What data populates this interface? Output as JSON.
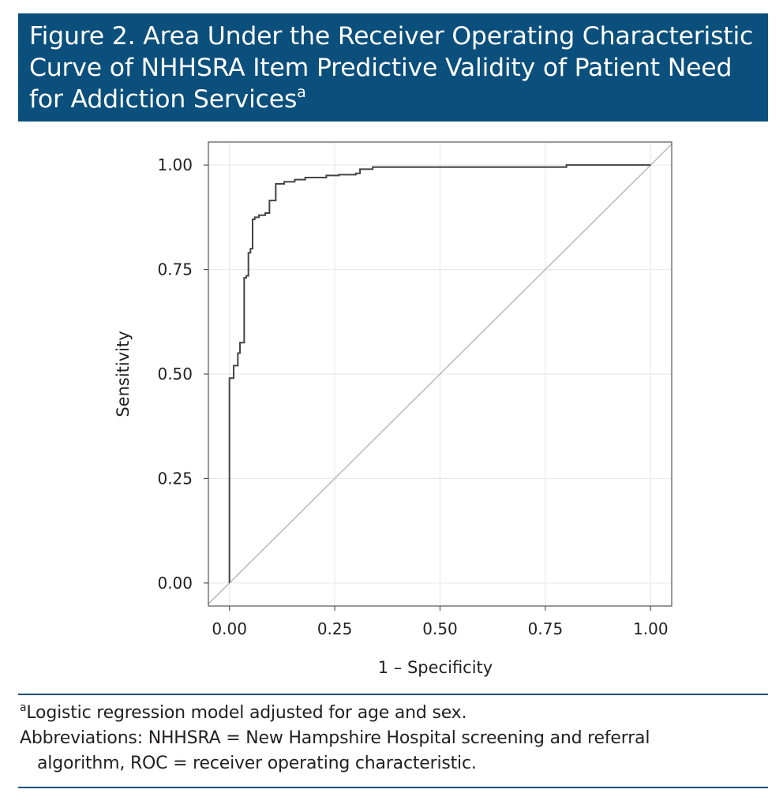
{
  "header": {
    "title": "Figure 2. Area Under the Receiver Operating Characteristic Curve of NHHSRA Item Predictive Validity of Patient Need for Addiction Services",
    "title_marker": "a"
  },
  "colors": {
    "header_bg": "#0b4f7c",
    "header_text": "#ffffff",
    "curve": "#444444",
    "reference_line": "#bdbdbd",
    "grid": "#e6e6e6"
  },
  "chart_data": {
    "type": "line",
    "title": "",
    "xlabel": "1 – Specificity",
    "ylabel": "Sensitivity",
    "xlim": [
      -0.05,
      1.05
    ],
    "ylim": [
      -0.055,
      1.055
    ],
    "x_ticks": [
      "0.00",
      "0.25",
      "0.50",
      "0.75",
      "1.00"
    ],
    "y_ticks": [
      "0.00",
      "0.25",
      "0.50",
      "0.75",
      "1.00"
    ],
    "grid": true,
    "legend": "none",
    "series": [
      {
        "kind": "step",
        "x": [
          0,
          0,
          0.01,
          0.01,
          0.02,
          0.02,
          0.025,
          0.025,
          0.035,
          0.035,
          0.04,
          0.04,
          0.045,
          0.045,
          0.05,
          0.05,
          0.055,
          0.055,
          0.06,
          0.06,
          0.07,
          0.07,
          0.085,
          0.085,
          0.095,
          0.095,
          0.11,
          0.11,
          0.13,
          0.13,
          0.155,
          0.155,
          0.18,
          0.18,
          0.23,
          0.23,
          0.26,
          0.26,
          0.3,
          0.3,
          0.31,
          0.31,
          0.34,
          0.34,
          0.8,
          0.8,
          1.0
        ],
        "y": [
          0,
          0.49,
          0.49,
          0.52,
          0.52,
          0.55,
          0.55,
          0.575,
          0.575,
          0.73,
          0.73,
          0.735,
          0.735,
          0.79,
          0.79,
          0.8,
          0.8,
          0.87,
          0.87,
          0.875,
          0.875,
          0.88,
          0.88,
          0.885,
          0.885,
          0.915,
          0.915,
          0.955,
          0.955,
          0.96,
          0.96,
          0.965,
          0.965,
          0.97,
          0.97,
          0.975,
          0.975,
          0.977,
          0.977,
          0.98,
          0.98,
          0.99,
          0.99,
          0.995,
          0.995,
          1.0,
          1.0
        ]
      },
      {
        "kind": "reference",
        "x": [
          -0.05,
          1.05
        ],
        "y": [
          -0.05,
          1.05
        ]
      }
    ]
  },
  "footnotes": {
    "a_marker": "a",
    "a_text": "Logistic regression model adjusted for age and sex.",
    "abbrev_line1": "Abbreviations: NHHSRA = New Hampshire Hospital screening and referral",
    "abbrev_line2": "algorithm, ROC = receiver operating characteristic."
  }
}
